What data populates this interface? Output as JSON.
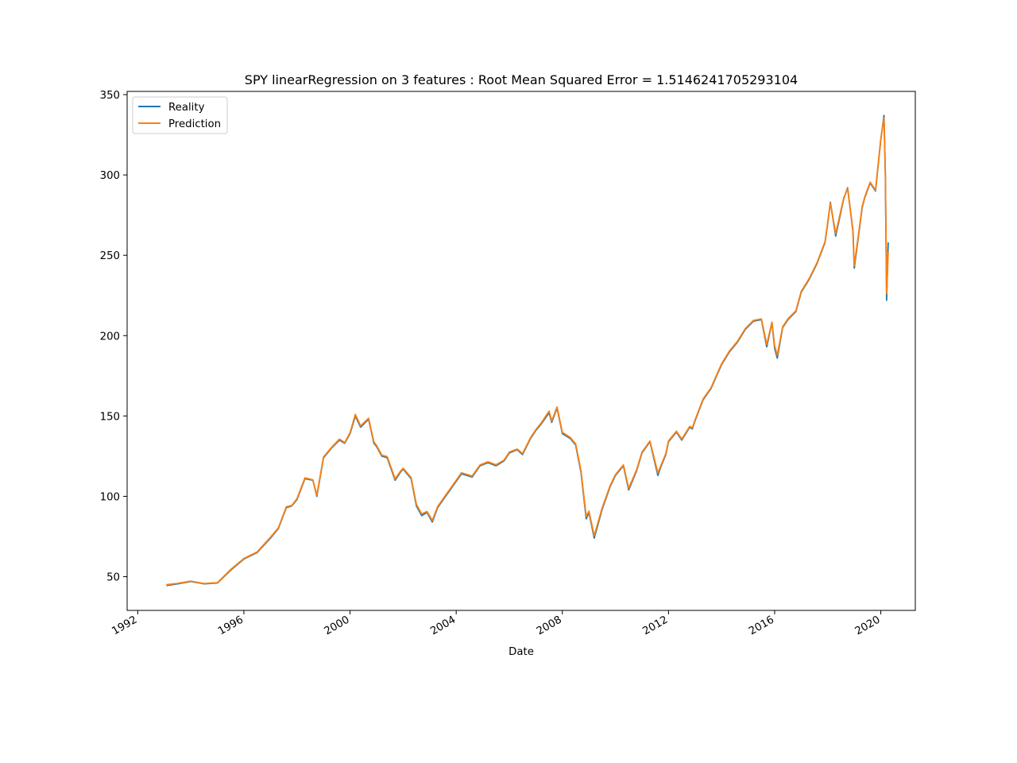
{
  "chart_data": {
    "type": "line",
    "title": "SPY linearRegression on 3 features : Root Mean Squared Error = 1.5146241705293104",
    "xlabel": "Date",
    "ylabel": "",
    "xlim": [
      1991.6,
      2021.3
    ],
    "ylim": [
      29,
      352
    ],
    "x_ticks": [
      1992,
      1996,
      2000,
      2004,
      2008,
      2012,
      2016,
      2020
    ],
    "x_tick_labels": [
      "1992",
      "1996",
      "2000",
      "2004",
      "2008",
      "2012",
      "2016",
      "2020"
    ],
    "y_ticks": [
      50,
      100,
      150,
      200,
      250,
      300,
      350
    ],
    "y_tick_labels": [
      "50",
      "100",
      "150",
      "200",
      "250",
      "300",
      "350"
    ],
    "grid": false,
    "legend_position": "upper left",
    "series": [
      {
        "name": "Reality",
        "color": "#1f77b4"
      },
      {
        "name": "Prediction",
        "color": "#ff7f0e"
      }
    ],
    "x": [
      1993.08,
      1993.5,
      1994.0,
      1994.5,
      1995.0,
      1995.5,
      1996.0,
      1996.5,
      1997.0,
      1997.3,
      1997.6,
      1997.8,
      1998.0,
      1998.3,
      1998.6,
      1998.75,
      1999.0,
      1999.3,
      1999.6,
      1999.8,
      2000.0,
      2000.2,
      2000.4,
      2000.7,
      2000.9,
      2001.0,
      2001.2,
      2001.4,
      2001.7,
      2001.9,
      2002.0,
      2002.3,
      2002.5,
      2002.7,
      2002.9,
      2003.1,
      2003.3,
      2003.6,
      2003.9,
      2004.2,
      2004.6,
      2004.9,
      2005.2,
      2005.5,
      2005.8,
      2006.0,
      2006.3,
      2006.5,
      2006.8,
      2007.0,
      2007.2,
      2007.5,
      2007.6,
      2007.8,
      2008.0,
      2008.3,
      2008.5,
      2008.7,
      2008.9,
      2009.0,
      2009.2,
      2009.5,
      2009.8,
      2010.0,
      2010.3,
      2010.5,
      2010.8,
      2011.0,
      2011.3,
      2011.6,
      2011.7,
      2011.9,
      2012.0,
      2012.3,
      2012.5,
      2012.8,
      2012.9,
      2013.0,
      2013.3,
      2013.6,
      2014.0,
      2014.3,
      2014.6,
      2014.9,
      2015.2,
      2015.5,
      2015.7,
      2015.9,
      2016.0,
      2016.1,
      2016.3,
      2016.5,
      2016.8,
      2017.0,
      2017.3,
      2017.6,
      2017.9,
      2018.0,
      2018.1,
      2018.3,
      2018.6,
      2018.75,
      2018.95,
      2019.0,
      2019.3,
      2019.4,
      2019.6,
      2019.8,
      2020.0,
      2020.12,
      2020.17,
      2020.22,
      2020.28
    ],
    "reality": [
      44.5,
      45.5,
      47.0,
      45.5,
      46.0,
      54.0,
      61.0,
      65.0,
      74.0,
      80.0,
      93.0,
      94.0,
      98.0,
      111.0,
      110.0,
      100.0,
      124.0,
      130.0,
      135.0,
      133.0,
      139.0,
      150.0,
      143.0,
      148.0,
      133.0,
      131.0,
      125.0,
      124.0,
      110.0,
      115.0,
      117.0,
      111.0,
      94.0,
      88.0,
      90.0,
      84.0,
      93.0,
      100.0,
      107.0,
      114.0,
      112.0,
      119.0,
      121.0,
      119.0,
      122.0,
      127.0,
      129.0,
      126.0,
      136.0,
      141.0,
      145.0,
      152.0,
      146.0,
      155.0,
      139.0,
      136.0,
      132.0,
      115.0,
      86.0,
      90.0,
      74.0,
      92.0,
      106.0,
      113.0,
      119.0,
      104.0,
      116.0,
      127.0,
      134.0,
      113.0,
      118.0,
      126.0,
      134.0,
      140.0,
      135.0,
      143.0,
      142.0,
      147.0,
      160.0,
      167.0,
      182.0,
      190.0,
      196.0,
      204.0,
      209.0,
      210.0,
      193.0,
      208.0,
      192.0,
      186.0,
      205.0,
      210.0,
      215.0,
      227.0,
      235.0,
      245.0,
      258.0,
      270.0,
      283.0,
      262.0,
      285.0,
      292.0,
      265.0,
      242.0,
      280.0,
      286.0,
      295.0,
      290.0,
      322.0,
      337.0,
      300.0,
      222.0,
      258.0
    ],
    "prediction": [
      45.0,
      45.8,
      47.2,
      45.7,
      46.2,
      54.4,
      61.3,
      65.4,
      74.5,
      80.4,
      93.5,
      94.3,
      98.5,
      111.5,
      110.2,
      100.6,
      124.5,
      130.4,
      135.6,
      133.4,
      139.6,
      151.0,
      143.8,
      148.6,
      133.8,
      131.6,
      125.6,
      124.7,
      110.8,
      115.6,
      117.5,
      111.7,
      95.0,
      89.0,
      90.6,
      85.0,
      93.6,
      100.6,
      107.6,
      114.6,
      112.6,
      119.5,
      121.5,
      119.6,
      122.5,
      127.5,
      129.4,
      126.6,
      136.5,
      141.5,
      145.6,
      153.0,
      146.8,
      155.6,
      139.8,
      136.6,
      132.7,
      116.0,
      87.5,
      90.8,
      75.5,
      92.8,
      106.6,
      113.5,
      119.5,
      105.0,
      116.6,
      127.5,
      134.4,
      114.5,
      118.7,
      126.6,
      134.5,
      140.5,
      135.6,
      143.5,
      142.6,
      147.5,
      160.5,
      167.5,
      182.5,
      190.5,
      196.5,
      204.5,
      209.5,
      210.4,
      194.5,
      208.4,
      193.5,
      187.8,
      205.5,
      210.5,
      215.5,
      227.5,
      235.5,
      245.5,
      258.5,
      270.5,
      282.5,
      263.5,
      285.5,
      291.5,
      266.0,
      243.5,
      280.5,
      286.5,
      295.5,
      290.5,
      322.5,
      335.5,
      302.0,
      226.0,
      252.0
    ]
  }
}
